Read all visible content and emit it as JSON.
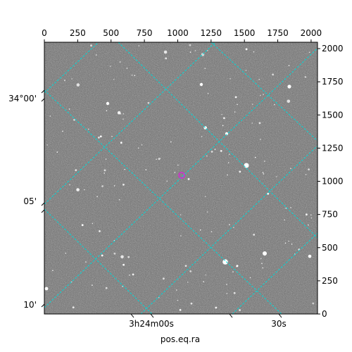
{
  "figure": {
    "xlabel": "pos.eq.ra",
    "pixel_axes": {
      "x_ticks": [
        "0",
        "250",
        "500",
        "750",
        "1000",
        "1250",
        "1500",
        "1750",
        "2000"
      ],
      "y_ticks": [
        "0",
        "250",
        "500",
        "750",
        "1000",
        "1250",
        "1500",
        "1750",
        "2000"
      ],
      "range": [
        0,
        2048
      ]
    },
    "ra_ticks": [
      "3h24m00s",
      "30s"
    ],
    "dec_ticks": [
      "34°00'",
      "05'",
      "10'"
    ],
    "colors": {
      "grid": "#00d9d9",
      "marker": "#cc33cc",
      "sky_background": "#6e6e6e"
    }
  }
}
